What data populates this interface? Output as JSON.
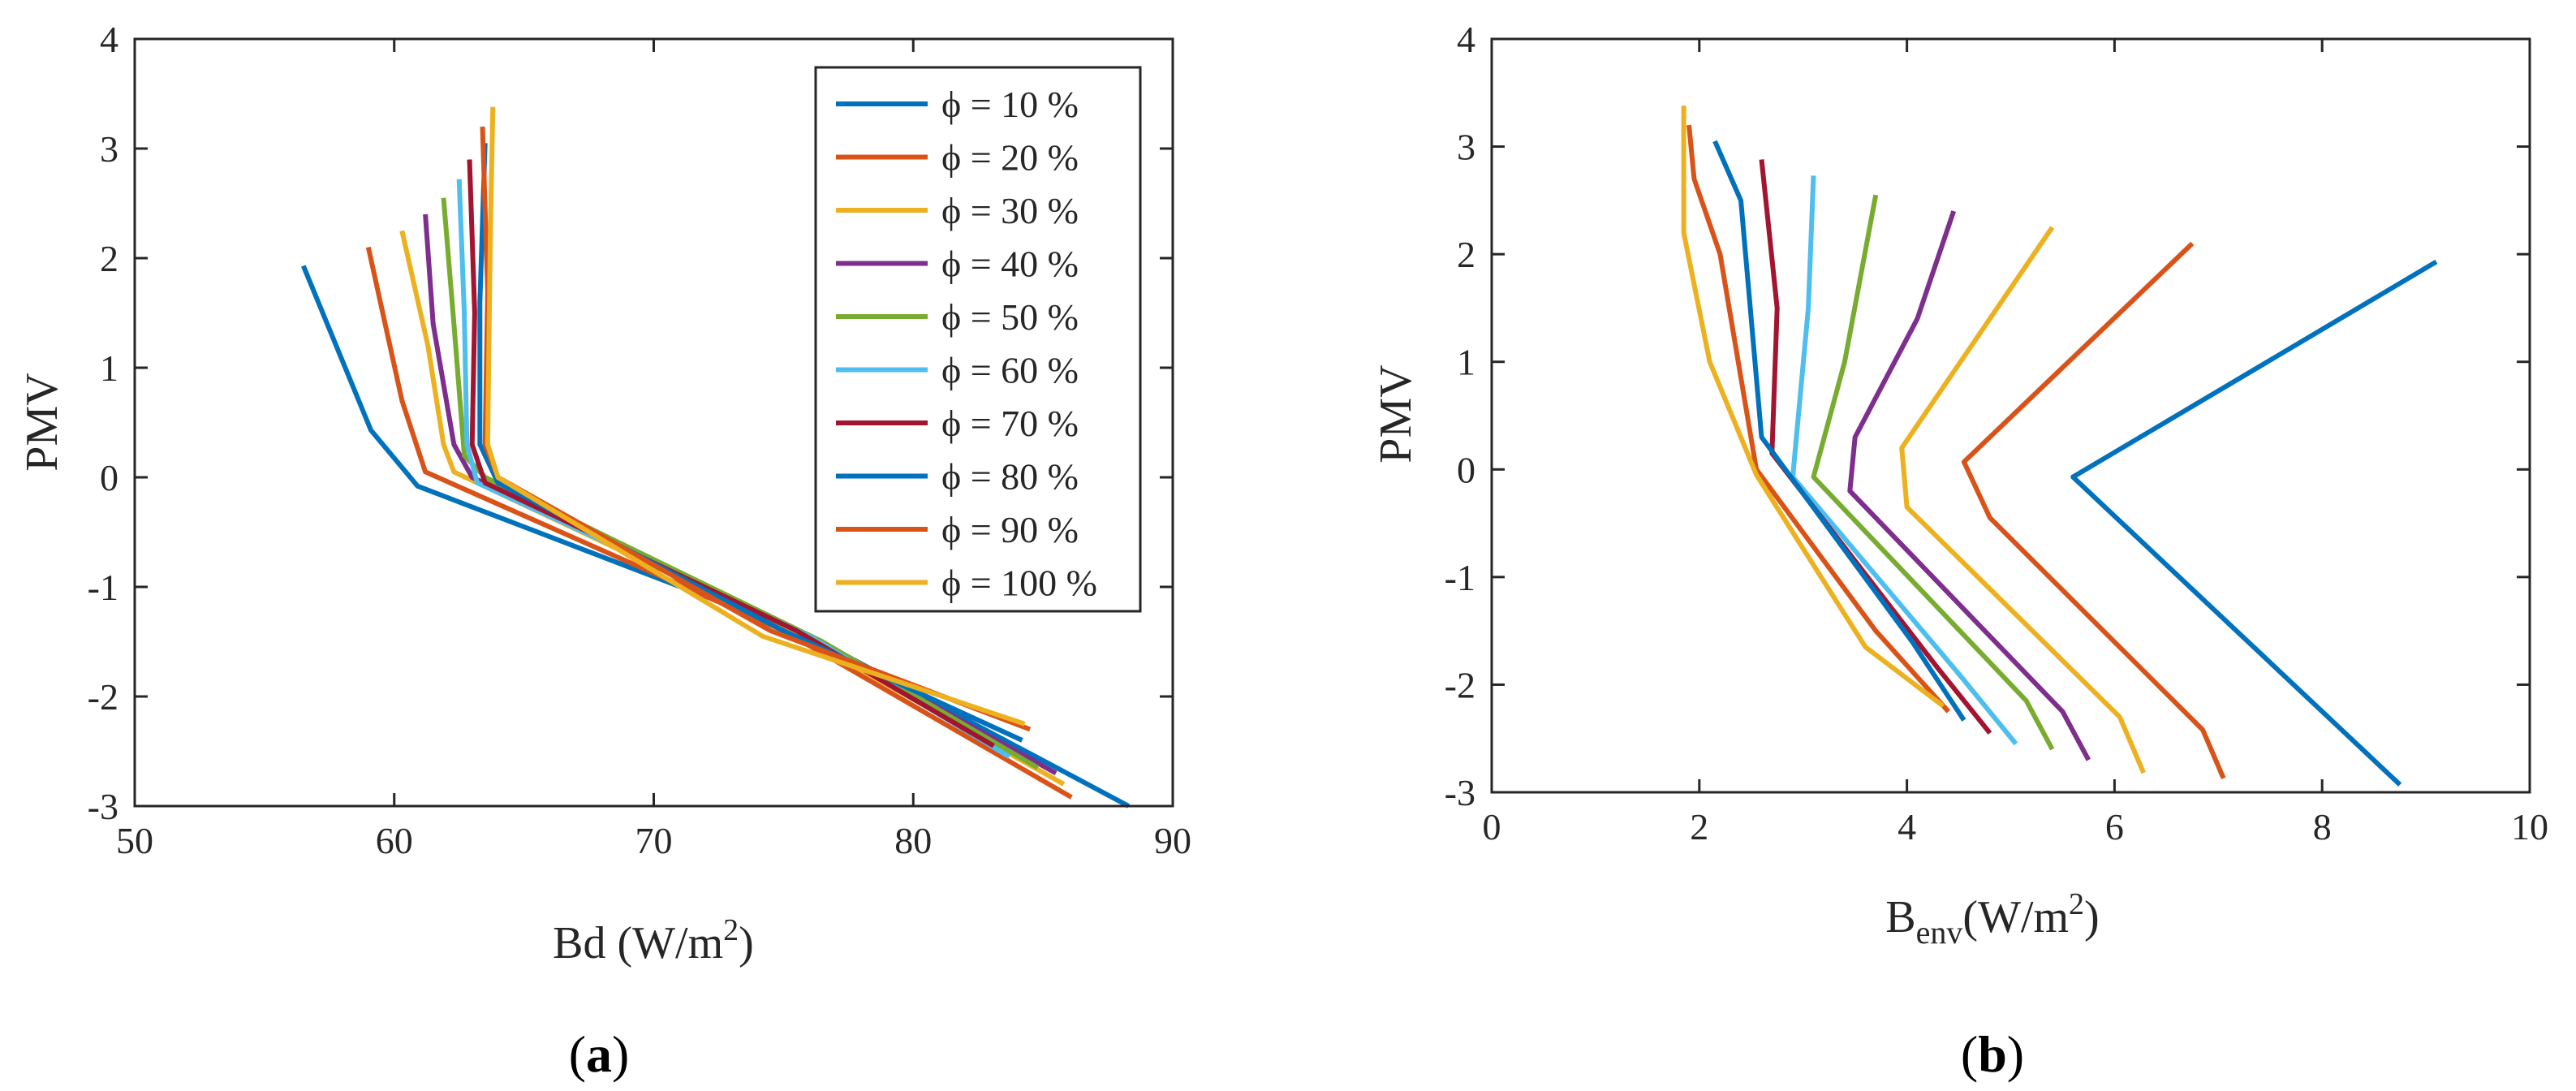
{
  "series_names": [
    "ϕ = 10 %",
    "ϕ = 20 %",
    "ϕ = 30 %",
    "ϕ = 40 %",
    "ϕ = 50 %",
    "ϕ = 60 %",
    "ϕ = 70 %",
    "ϕ = 80 %",
    "ϕ = 90 %",
    "ϕ = 100 %"
  ],
  "series_colors": [
    "#0072BD",
    "#D95319",
    "#EDB120",
    "#7E2F8E",
    "#77AC30",
    "#4DBEEE",
    "#A2142F",
    "#0072BD",
    "#D95319",
    "#EDB120"
  ],
  "panel_labels": [
    "(a)",
    "(b)"
  ],
  "chart_data": [
    {
      "type": "line",
      "panel": "(a)",
      "xlabel": "Bd (W/m²)",
      "xlabel_base": "Bd (W/m",
      "xlabel_sup": "2",
      "xlabel_tail": ")",
      "ylabel": "PMV",
      "xlim": [
        50,
        90
      ],
      "ylim": [
        -3,
        4
      ],
      "xticks": [
        50,
        60,
        70,
        80,
        90
      ],
      "yticks": [
        -3,
        -2,
        -1,
        0,
        1,
        2,
        3,
        4
      ],
      "grid": false,
      "legend": "top-right",
      "series": [
        {
          "name": "ϕ = 10 %",
          "points": [
            [
              88.3,
              -3.0
            ],
            [
              76.0,
              -1.45
            ],
            [
              60.9,
              -0.08
            ],
            [
              59.1,
              0.43
            ],
            [
              56.5,
              1.93
            ]
          ]
        },
        {
          "name": "ϕ = 20 %",
          "points": [
            [
              86.1,
              -2.92
            ],
            [
              75.0,
              -1.4
            ],
            [
              61.2,
              0.05
            ],
            [
              60.3,
              0.7
            ],
            [
              59.0,
              2.1
            ]
          ]
        },
        {
          "name": "ϕ = 30 %",
          "points": [
            [
              85.8,
              -2.8
            ],
            [
              75.3,
              -1.4
            ],
            [
              62.3,
              0.05
            ],
            [
              61.9,
              0.3
            ],
            [
              61.3,
              1.2
            ],
            [
              60.3,
              2.25
            ]
          ]
        },
        {
          "name": "ϕ = 40 %",
          "points": [
            [
              85.5,
              -2.7
            ],
            [
              76.0,
              -1.45
            ],
            [
              63.0,
              0.0
            ],
            [
              62.3,
              0.3
            ],
            [
              61.5,
              1.4
            ],
            [
              61.2,
              2.4
            ]
          ]
        },
        {
          "name": "ϕ = 50 %",
          "points": [
            [
              84.8,
              -2.65
            ],
            [
              76.5,
              -1.5
            ],
            [
              63.5,
              0.0
            ],
            [
              62.7,
              0.2
            ],
            [
              62.3,
              1.4
            ],
            [
              61.9,
              2.55
            ]
          ]
        },
        {
          "name": "ϕ = 60 %",
          "points": [
            [
              83.7,
              -2.55
            ],
            [
              76.0,
              -1.45
            ],
            [
              63.2,
              -0.05
            ],
            [
              62.8,
              0.3
            ],
            [
              62.7,
              1.5
            ],
            [
              62.5,
              2.72
            ]
          ]
        },
        {
          "name": "ϕ = 70 %",
          "points": [
            [
              83.1,
              -2.45
            ],
            [
              75.5,
              -1.4
            ],
            [
              63.5,
              -0.05
            ],
            [
              63.0,
              0.3
            ],
            [
              63.1,
              1.5
            ],
            [
              62.9,
              2.9
            ]
          ]
        },
        {
          "name": "ϕ = 80 %",
          "points": [
            [
              84.2,
              -2.4
            ],
            [
              75.0,
              -1.4
            ],
            [
              64.0,
              -0.05
            ],
            [
              63.3,
              0.3
            ],
            [
              63.3,
              1.6
            ],
            [
              63.5,
              3.05
            ]
          ]
        },
        {
          "name": "ϕ = 90 %",
          "points": [
            [
              84.5,
              -2.3
            ],
            [
              74.5,
              -1.4
            ],
            [
              64.0,
              0.0
            ],
            [
              63.5,
              0.3
            ],
            [
              63.6,
              1.7
            ],
            [
              63.4,
              3.2
            ]
          ]
        },
        {
          "name": "ϕ = 100 %",
          "points": [
            [
              84.3,
              -2.25
            ],
            [
              74.2,
              -1.45
            ],
            [
              64.0,
              0.0
            ],
            [
              63.6,
              0.3
            ],
            [
              63.7,
              2.2
            ],
            [
              63.8,
              3.38
            ]
          ]
        }
      ]
    },
    {
      "type": "line",
      "panel": "(b)",
      "xlabel": "B_env(W/m²)",
      "xlabel_base": "B",
      "xlabel_sub": "env",
      "xlabel_mid": "(W/m",
      "xlabel_sup": "2",
      "xlabel_tail": ")",
      "ylabel": "PMV",
      "xlim": [
        0,
        10
      ],
      "ylim": [
        -3,
        4
      ],
      "xticks": [
        0,
        2,
        4,
        6,
        8,
        10
      ],
      "yticks": [
        -3,
        -2,
        -1,
        0,
        1,
        2,
        3,
        4
      ],
      "grid": false,
      "legend": "none",
      "series": [
        {
          "name": "ϕ = 10 %",
          "points": [
            [
              8.75,
              -2.93
            ],
            [
              5.6,
              -0.07
            ],
            [
              9.1,
              1.93
            ]
          ]
        },
        {
          "name": "ϕ = 20 %",
          "points": [
            [
              7.05,
              -2.87
            ],
            [
              6.85,
              -2.42
            ],
            [
              4.8,
              -0.45
            ],
            [
              4.55,
              0.07
            ],
            [
              6.75,
              2.1
            ]
          ]
        },
        {
          "name": "ϕ = 30 %",
          "points": [
            [
              6.28,
              -2.82
            ],
            [
              6.05,
              -2.3
            ],
            [
              4.0,
              -0.35
            ],
            [
              3.95,
              0.2
            ],
            [
              5.4,
              2.25
            ]
          ]
        },
        {
          "name": "ϕ = 40 %",
          "points": [
            [
              5.75,
              -2.7
            ],
            [
              5.5,
              -2.25
            ],
            [
              3.45,
              -0.2
            ],
            [
              3.5,
              0.3
            ],
            [
              4.1,
              1.4
            ],
            [
              4.45,
              2.4
            ]
          ]
        },
        {
          "name": "ϕ = 50 %",
          "points": [
            [
              5.4,
              -2.6
            ],
            [
              5.15,
              -2.15
            ],
            [
              3.1,
              -0.07
            ],
            [
              3.4,
              1.0
            ],
            [
              3.7,
              2.55
            ]
          ]
        },
        {
          "name": "ϕ = 60 %",
          "points": [
            [
              5.05,
              -2.55
            ],
            [
              4.5,
              -1.9
            ],
            [
              2.9,
              -0.07
            ],
            [
              3.05,
              1.5
            ],
            [
              3.1,
              2.73
            ]
          ]
        },
        {
          "name": "ϕ = 70 %",
          "points": [
            [
              4.8,
              -2.45
            ],
            [
              4.3,
              -1.85
            ],
            [
              2.7,
              0.15
            ],
            [
              2.75,
              1.5
            ],
            [
              2.6,
              2.88
            ]
          ]
        },
        {
          "name": "ϕ = 80 %",
          "points": [
            [
              4.55,
              -2.33
            ],
            [
              4.05,
              -1.6
            ],
            [
              2.6,
              0.3
            ],
            [
              2.4,
              2.5
            ],
            [
              2.15,
              3.05
            ]
          ]
        },
        {
          "name": "ϕ = 90 %",
          "points": [
            [
              4.4,
              -2.25
            ],
            [
              3.7,
              -1.5
            ],
            [
              2.55,
              0.0
            ],
            [
              2.2,
              2.0
            ],
            [
              1.95,
              2.7
            ],
            [
              1.9,
              3.2
            ]
          ]
        },
        {
          "name": "ϕ = 100 %",
          "points": [
            [
              4.35,
              -2.2
            ],
            [
              3.6,
              -1.65
            ],
            [
              2.55,
              -0.05
            ],
            [
              2.1,
              1.0
            ],
            [
              1.85,
              2.2
            ],
            [
              1.85,
              3.38
            ]
          ]
        }
      ]
    }
  ]
}
